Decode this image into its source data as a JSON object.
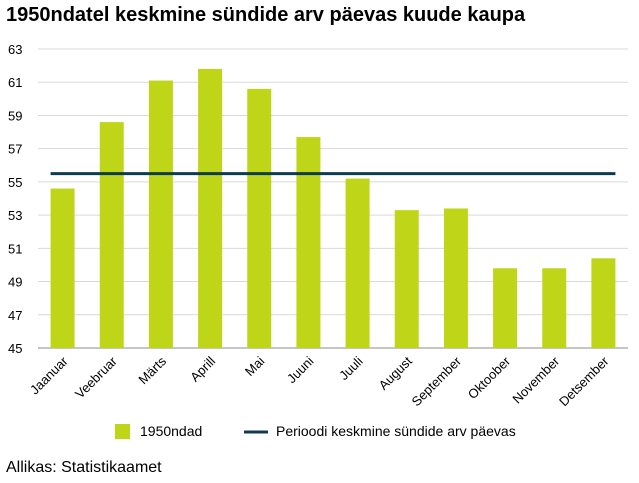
{
  "chart_data": {
    "type": "bar",
    "title": "1950ndatel keskmine sündide arv päevas kuude kaupa",
    "categories": [
      "Jaanuar",
      "Veebruar",
      "Märts",
      "Aprill",
      "Mai",
      "Juuni",
      "Juuli",
      "August",
      "September",
      "Oktoober",
      "November",
      "Detsember"
    ],
    "series": [
      {
        "name": "1950ndad",
        "values": [
          54.6,
          58.6,
          61.1,
          61.8,
          60.6,
          57.7,
          55.2,
          53.3,
          53.4,
          49.8,
          49.8,
          50.4
        ],
        "color": "#bfd618"
      }
    ],
    "reference_line": {
      "name": "Perioodi keskmine sündide arv päevas",
      "value": 55.5,
      "color": "#0d3b4f"
    },
    "ylim": [
      45,
      63
    ],
    "yticks": [
      "45",
      "47",
      "49",
      "51",
      "53",
      "55",
      "57",
      "59",
      "61",
      "63"
    ],
    "xlabel": "",
    "ylabel": "",
    "grid": true,
    "legend_position": "bottom"
  },
  "source": "Allikas: Statistikaamet"
}
